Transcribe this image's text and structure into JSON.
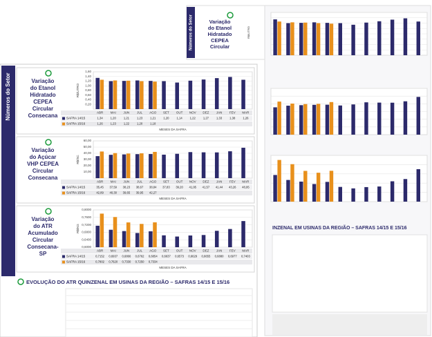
{
  "sidebar": "Números do Setor",
  "section_title": "EVOLUÇÃO DO ATR QUINZENAL EM USINAS DA REGIÃO – SAFRAS 14/15 E 15/16",
  "cropped_title": "INZENAL EM USINAS DA REGIÃO – SAFRAS 14/15 E 15/16",
  "chart_data": [
    {
      "type": "bar",
      "title_lines": [
        "Variação",
        "do Etanol",
        "Hidratado",
        "CEPEA",
        "Circular",
        "Consecana"
      ],
      "y_label": "R$/LITRO",
      "x_label": "MESES DA SAFRA",
      "categories": [
        "ABR",
        "MAI",
        "JUN",
        "JUL",
        "AGO",
        "SET",
        "OUT",
        "NOV",
        "DEZ",
        "JAN",
        "FEV",
        "MAR"
      ],
      "series": [
        {
          "name": "SAFRA 14/15",
          "color": "#2c2a6b",
          "values": [
            1.34,
            1.2,
            1.21,
            1.23,
            1.21,
            1.2,
            1.14,
            1.22,
            1.27,
            1.33,
            1.38,
            1.26
          ],
          "value_labels": [
            "1,34",
            "1,20",
            "1,21",
            "1,23",
            "1,21",
            "1,20",
            "1,14",
            "1,22",
            "1,27",
            "1,33",
            "1,38",
            "1,26"
          ]
        },
        {
          "name": "SAFRA 15/16",
          "color": "#e8901c",
          "values": [
            1.26,
            1.23,
            1.22,
            1.2,
            1.18,
            null,
            null,
            null,
            null,
            null,
            null,
            null
          ],
          "value_labels": [
            "1,26",
            "1,23",
            "1,22",
            "1,20",
            "1,18",
            null,
            null,
            null,
            null,
            null,
            null,
            null
          ]
        }
      ],
      "ylim": [
        0,
        1.6
      ],
      "yticks": [
        {
          "value": 0.2,
          "label": "0,20"
        },
        {
          "value": 0.4,
          "label": "0,40"
        },
        {
          "value": 0.6,
          "label": "0,60"
        },
        {
          "value": 0.8,
          "label": "0,80"
        },
        {
          "value": 1.0,
          "label": "1,00"
        },
        {
          "value": 1.2,
          "label": "1,20"
        },
        {
          "value": 1.4,
          "label": "1,40"
        },
        {
          "value": 1.6,
          "label": "1,60"
        }
      ],
      "grid": true
    },
    {
      "type": "bar",
      "title_lines": [
        "Variação",
        "do Açúcar",
        "VHP CEPEA",
        "Circular",
        "Consecana"
      ],
      "y_label": "R$/SC",
      "x_label": "MESES DA SAFRA",
      "categories": [
        "ABR",
        "MAI",
        "JUN",
        "JUL",
        "AGO",
        "SET",
        "OUT",
        "NOV",
        "DEZ",
        "JAN",
        "FEV",
        "MAR"
      ],
      "series": [
        {
          "name": "SAFRA 14/15",
          "color": "#2c2a6b",
          "values": [
            35.45,
            37.59,
            38.23,
            38.67,
            38.84,
            37.83,
            39.2,
            41.95,
            41.57,
            41.44,
            43.26,
            48.95
          ],
          "value_labels": [
            "35,45",
            "37,59",
            "38,23",
            "38,67",
            "38,84",
            "37,83",
            "39,20",
            "41,95",
            "41,57",
            "41,44",
            "43,26",
            "48,95"
          ]
        },
        {
          "name": "SAFRA 15/16",
          "color": "#e8901c",
          "values": [
            42.89,
            40.3,
            39.65,
            39.95,
            42.27,
            null,
            null,
            null,
            null,
            null,
            null,
            null
          ],
          "value_labels": [
            "42,89",
            "40,30",
            "39,65",
            "39,95",
            "42,27",
            null,
            null,
            null,
            null,
            null,
            null,
            null
          ]
        }
      ],
      "ylim": [
        0,
        60
      ],
      "yticks": [
        {
          "value": 10,
          "label": "10,00"
        },
        {
          "value": 20,
          "label": "20,00"
        },
        {
          "value": 30,
          "label": "30,00"
        },
        {
          "value": 40,
          "label": "40,00"
        },
        {
          "value": 50,
          "label": "50,00"
        },
        {
          "value": 60,
          "label": "60,00"
        }
      ],
      "grid": true
    },
    {
      "type": "bar",
      "title_lines": [
        "Variação",
        "do ATR",
        "Acumulado",
        "Circular",
        "Consecana-",
        "SP"
      ],
      "y_label": "R$/KG",
      "x_label": "MESES DA SAFRA",
      "categories": [
        "ABR",
        "MAI",
        "JUN",
        "JUL",
        "AGO",
        "SET",
        "OUT",
        "NOV",
        "DEZ",
        "JAN",
        "FEV",
        "MAR"
      ],
      "series": [
        {
          "name": "SAFRA 14/15",
          "color": "#2c2a6b",
          "values": [
            0.7152,
            0.6937,
            0.6866,
            0.6762,
            0.6854,
            0.6637,
            0.6573,
            0.6629,
            0.6655,
            0.688,
            0.6977,
            0.7403
          ],
          "value_labels": [
            "0,7152",
            "0,6937",
            "0,6866",
            "0,6762",
            "0,6854",
            "0,6637",
            "0,6573",
            "0,6629",
            "0,6655",
            "0,6880",
            "0,6977",
            "0,7403"
          ]
        },
        {
          "name": "SAFRA 15/16",
          "color": "#e8901c",
          "values": [
            0.7802,
            0.762,
            0.733,
            0.725,
            0.7334,
            null,
            null,
            null,
            null,
            null,
            null,
            null
          ],
          "value_labels": [
            "0,7802",
            "0,7620",
            "0,7330",
            "0,7250",
            "0,7334",
            null,
            null,
            null,
            null,
            null,
            null,
            null
          ]
        }
      ],
      "ylim": [
        0.6,
        0.8
      ],
      "yticks": [
        {
          "value": 0.6,
          "label": "0,6000"
        },
        {
          "value": 0.64,
          "label": "0,6400"
        },
        {
          "value": 0.68,
          "label": "0,6800"
        },
        {
          "value": 0.72,
          "label": "0,7200"
        },
        {
          "value": 0.76,
          "label": "0,7600"
        },
        {
          "value": 0.8,
          "label": "0,8000"
        }
      ],
      "grid": true
    }
  ]
}
